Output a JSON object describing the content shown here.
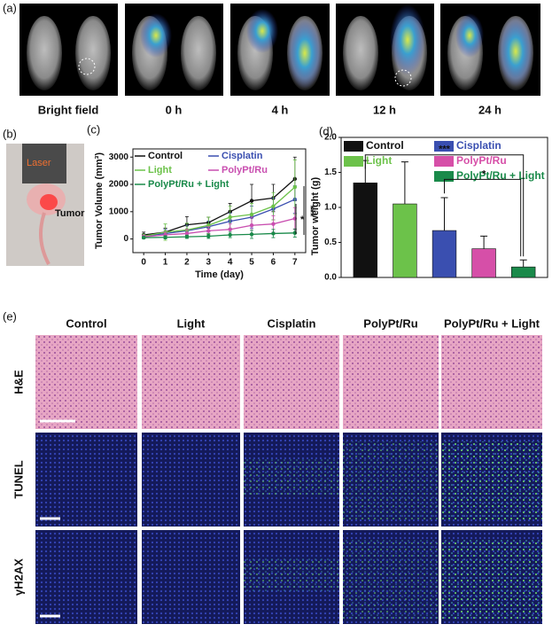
{
  "panel_labels": [
    "(a)",
    "(b)",
    "(c)",
    "(d)",
    "(e)"
  ],
  "imaging": {
    "captions": [
      "Bright field",
      "0 h",
      "4 h",
      "12 h",
      "24 h"
    ]
  },
  "photo": {
    "labels": [
      "Laser",
      "Tumor"
    ]
  },
  "histology": {
    "columns": [
      "Control",
      "Light",
      "Cisplatin",
      "PolyPt/Ru",
      "PolyPt/Ru + Light"
    ],
    "rows": [
      "H&E",
      "TUNEL",
      "γH2AX"
    ]
  },
  "chart_data": [
    {
      "type": "line",
      "xlabel": "Time (day)",
      "ylabel": "Tumor Volume (mm³)",
      "x": [
        0,
        1,
        2,
        3,
        4,
        5,
        6,
        7
      ],
      "xlim": [
        -0.5,
        7.5
      ],
      "xticks": [
        0,
        1,
        2,
        3,
        4,
        5,
        6,
        7
      ],
      "ylim": [
        -500,
        3300
      ],
      "yticks": [
        0,
        1000,
        2000,
        3000
      ],
      "annotations": [
        "*",
        "***"
      ],
      "series": [
        {
          "name": "Control",
          "color": "#111111",
          "values": [
            150,
            250,
            520,
            600,
            1000,
            1400,
            1500,
            2200
          ],
          "errors": [
            100,
            150,
            300,
            200,
            300,
            600,
            500,
            800
          ]
        },
        {
          "name": "Cisplatin",
          "color": "#3a4fb0",
          "values": [
            100,
            200,
            300,
            450,
            650,
            800,
            1100,
            1450
          ],
          "errors": [
            80,
            150,
            200,
            200,
            300,
            400,
            400,
            500
          ]
        },
        {
          "name": "Light",
          "color": "#6cc24a",
          "values": [
            100,
            250,
            330,
            500,
            800,
            900,
            1200,
            1900
          ],
          "errors": [
            80,
            300,
            250,
            300,
            400,
            400,
            500,
            1000
          ]
        },
        {
          "name": "PolyPt/Ru",
          "color": "#c94fb0",
          "values": [
            80,
            150,
            200,
            300,
            350,
            500,
            550,
            750
          ],
          "errors": [
            60,
            100,
            150,
            150,
            200,
            300,
            300,
            400
          ]
        },
        {
          "name": "PolyPt/Ru + Light",
          "color": "#1a8a4a",
          "values": [
            50,
            60,
            80,
            100,
            150,
            170,
            200,
            220
          ],
          "errors": [
            40,
            60,
            60,
            80,
            100,
            150,
            150,
            150
          ]
        }
      ]
    },
    {
      "type": "bar",
      "ylabel": "Tumor weight (g)",
      "ylim": [
        0,
        2
      ],
      "yticks": [
        {
          "value": 0,
          "label": "0.0"
        },
        0.5,
        {
          "value": 1,
          "label": "1.0"
        },
        1.5,
        {
          "value": 2,
          "label": "2.0"
        }
      ],
      "annotations": [
        "***",
        "*"
      ],
      "series": [
        {
          "name": "Control",
          "color": "#111111",
          "values": [
            1.35
          ],
          "errors": [
            0.32
          ]
        },
        {
          "name": "Light",
          "color": "#6cc24a",
          "values": [
            1.05
          ],
          "errors": [
            0.6
          ]
        },
        {
          "name": "Cisplatin",
          "color": "#3a4fb0",
          "values": [
            0.67
          ],
          "errors": [
            0.47
          ]
        },
        {
          "name": "PolyPt/Ru",
          "color": "#d64fa8",
          "values": [
            0.41
          ],
          "errors": [
            0.18
          ]
        },
        {
          "name": "PolyPt/Ru + Light",
          "color": "#1a8a4a",
          "values": [
            0.15
          ],
          "errors": [
            0.1
          ]
        }
      ]
    }
  ]
}
